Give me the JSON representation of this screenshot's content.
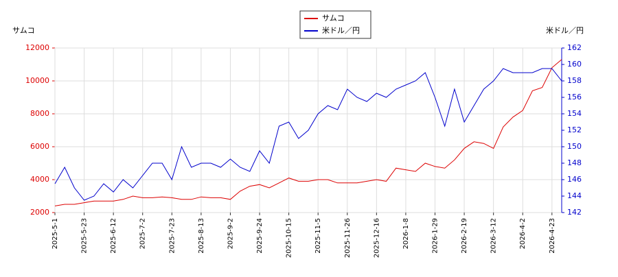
{
  "chart_data": {
    "type": "line",
    "categories": [
      "2025-5-1",
      null,
      null,
      "2025-5-23",
      null,
      null,
      "2025-6-12",
      null,
      null,
      "2025-7-2",
      null,
      null,
      "2025-7-23",
      null,
      null,
      "2025-8-13",
      null,
      null,
      "2025-9-2",
      null,
      null,
      "2025-9-24",
      null,
      null,
      "2025-10-15",
      null,
      null,
      "2025-11-5",
      null,
      null,
      "2025-11-26",
      null,
      null,
      "2025-12-16",
      null,
      null,
      "2026-1-8",
      null,
      null,
      "2026-1-29",
      null,
      null,
      "2026-2-19",
      null,
      null,
      "2026-3-12",
      null,
      null,
      "2026-4-2",
      null,
      null,
      "2026-4-23",
      null
    ],
    "ylabel": "サムコ",
    "y2label": "米ドル／円",
    "series": [
      {
        "name": "サムコ",
        "color": "#dd0000",
        "axis": "y",
        "values": [
          2400,
          2500,
          2500,
          2600,
          2700,
          2700,
          2700,
          2800,
          3000,
          2900,
          2900,
          2950,
          2900,
          2800,
          2800,
          2950,
          2900,
          2900,
          2800,
          3300,
          3600,
          3700,
          3500,
          3800,
          4100,
          3900,
          3900,
          4000,
          4000,
          3800,
          3800,
          3800,
          3900,
          4000,
          3900,
          4700,
          4600,
          4500,
          5000,
          4800,
          4700,
          5200,
          5900,
          6300,
          6200,
          5900,
          7200,
          7800,
          8200,
          9400,
          9600,
          10800,
          11300
        ]
      },
      {
        "name": "米ドル／円",
        "color": "#0000cc",
        "axis": "y2",
        "values": [
          145.5,
          147.5,
          145,
          143.5,
          144,
          145.5,
          144.5,
          146,
          145,
          146.5,
          148,
          148,
          146,
          150,
          147.5,
          148,
          148,
          147.5,
          148.5,
          147.5,
          147,
          149.5,
          148,
          152.5,
          153,
          151,
          152,
          154,
          155,
          154.5,
          157,
          156,
          155.5,
          156.5,
          156,
          157,
          157.5,
          158,
          159,
          156,
          152.5,
          157,
          153,
          155,
          157,
          158,
          159.5,
          159,
          159,
          159,
          159.5,
          159.5,
          158
        ]
      }
    ],
    "ylim": [
      2000,
      12000
    ],
    "yticks": [
      2000,
      4000,
      6000,
      8000,
      10000,
      12000
    ],
    "y2lim": [
      142,
      162
    ],
    "y2ticks": [
      142,
      144,
      146,
      148,
      150,
      152,
      154,
      156,
      158,
      160,
      162
    ],
    "grid": true,
    "legend": "top"
  }
}
